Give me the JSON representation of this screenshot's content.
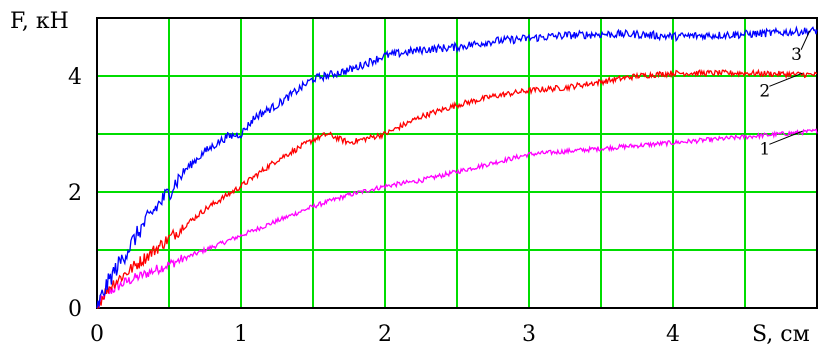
{
  "chart_data": {
    "type": "line",
    "title": "",
    "xlabel": "S, см",
    "ylabel": "F, кН",
    "xlim": [
      0,
      5
    ],
    "ylim": [
      0,
      5
    ],
    "grid": true,
    "grid_color": "#00dd00",
    "axis_color": "#000000",
    "x_ticks": [
      0,
      1,
      2,
      3,
      4
    ],
    "x_tick_labels": [
      "0",
      "1",
      "2",
      "3",
      "4"
    ],
    "x_grid": [
      0.5,
      1,
      1.5,
      2,
      2.5,
      3,
      3.5,
      4,
      4.5
    ],
    "y_ticks": [
      0,
      2,
      4
    ],
    "y_tick_labels": [
      "0",
      "2",
      "4"
    ],
    "y_grid": [
      1,
      2,
      3,
      4
    ],
    "series": [
      {
        "label": "1",
        "color": "#ff00ff",
        "noise": 0.04,
        "x": [
          0,
          0.05,
          0.1,
          0.2,
          0.3,
          0.5,
          0.75,
          1.0,
          1.25,
          1.5,
          1.75,
          2.0,
          2.25,
          2.5,
          2.75,
          3.0,
          3.25,
          3.5,
          3.75,
          4.0,
          4.25,
          4.5,
          4.75,
          5.0
        ],
        "y": [
          0,
          0.2,
          0.3,
          0.45,
          0.55,
          0.75,
          1.0,
          1.25,
          1.5,
          1.75,
          1.95,
          2.1,
          2.2,
          2.35,
          2.5,
          2.65,
          2.7,
          2.75,
          2.8,
          2.85,
          2.9,
          2.95,
          3.0,
          3.05
        ]
      },
      {
        "label": "2",
        "color": "#ff0000",
        "noise": 0.05,
        "x": [
          0,
          0.05,
          0.1,
          0.2,
          0.3,
          0.4,
          0.5,
          0.75,
          1.0,
          1.25,
          1.5,
          1.6,
          1.75,
          2.0,
          2.25,
          2.5,
          2.75,
          3.0,
          3.25,
          3.5,
          3.75,
          4.0,
          4.5,
          5.0
        ],
        "y": [
          0,
          0.25,
          0.4,
          0.6,
          0.8,
          1.0,
          1.2,
          1.7,
          2.1,
          2.55,
          2.9,
          3.0,
          2.85,
          3.0,
          3.3,
          3.5,
          3.65,
          3.75,
          3.8,
          3.9,
          4.0,
          4.05,
          4.05,
          4.02
        ]
      },
      {
        "label": "3",
        "color": "#0000ff",
        "noise": 0.07,
        "x": [
          0,
          0.05,
          0.1,
          0.15,
          0.2,
          0.3,
          0.4,
          0.5,
          0.6,
          0.75,
          0.9,
          1.0,
          1.1,
          1.25,
          1.5,
          1.75,
          2.0,
          2.25,
          2.5,
          2.75,
          3.0,
          3.25,
          3.5,
          3.75,
          4.0,
          4.25,
          4.5,
          4.75,
          5.0
        ],
        "y": [
          0,
          0.3,
          0.55,
          0.75,
          0.95,
          1.35,
          1.7,
          2.0,
          2.35,
          2.7,
          2.95,
          3.0,
          3.3,
          3.5,
          3.95,
          4.1,
          4.35,
          4.45,
          4.5,
          4.6,
          4.65,
          4.7,
          4.72,
          4.72,
          4.68,
          4.7,
          4.72,
          4.75,
          4.78
        ]
      }
    ],
    "annotations": [
      {
        "text": "1",
        "x": 4.6,
        "y": 2.65,
        "target_x": 4.9,
        "target_y": 3.05
      },
      {
        "text": "2",
        "x": 4.6,
        "y": 3.65,
        "target_x": 4.9,
        "target_y": 4.05
      },
      {
        "text": "3",
        "x": 4.82,
        "y": 4.28,
        "target_x": 4.95,
        "target_y": 4.78
      }
    ]
  }
}
